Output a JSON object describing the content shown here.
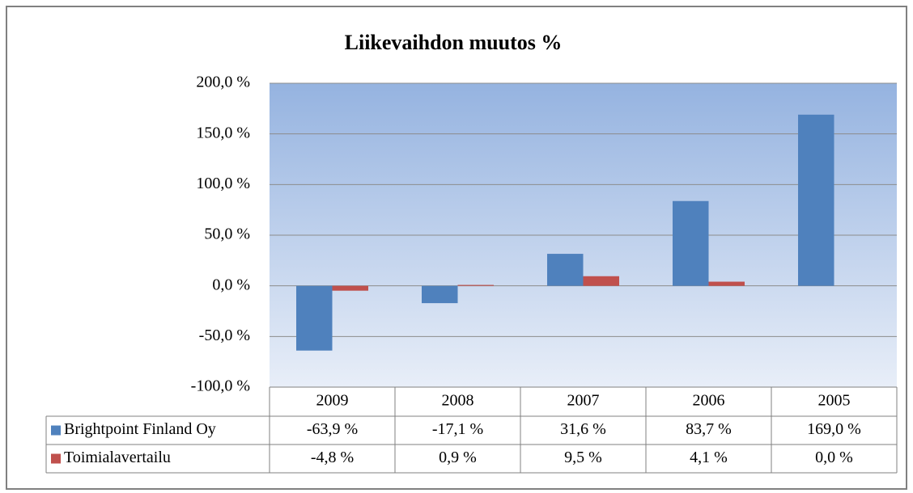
{
  "chart_data": {
    "type": "bar",
    "title": "Liikevaihdon muutos %",
    "categories": [
      "2009",
      "2008",
      "2007",
      "2006",
      "2005"
    ],
    "series": [
      {
        "name": "Brightpoint Finland Oy",
        "color": "#4f81bd",
        "values": [
          -63.9,
          -17.1,
          31.6,
          83.7,
          169.0
        ],
        "value_labels": [
          "-63,9 %",
          "-17,1 %",
          "31,6 %",
          "83,7 %",
          "169,0 %"
        ]
      },
      {
        "name": "Toimialavertailu",
        "color": "#c0504d",
        "values": [
          -4.8,
          0.9,
          9.5,
          4.1,
          0.0
        ],
        "value_labels": [
          "-4,8 %",
          "0,9 %",
          "9,5 %",
          "4,1 %",
          "0,0 %"
        ]
      }
    ],
    "ylim": [
      -100,
      200
    ],
    "yticks": [
      {
        "value": -100,
        "label": "-100,0 %"
      },
      {
        "value": -50,
        "label": "-50,0 %"
      },
      {
        "value": 0,
        "label": "0,0 %"
      },
      {
        "value": 50,
        "label": "50,0 %"
      },
      {
        "value": 100,
        "label": "100,0 %"
      },
      {
        "value": 150,
        "label": "150,0 %"
      },
      {
        "value": 200,
        "label": "200,0 %"
      }
    ],
    "grid": true
  }
}
